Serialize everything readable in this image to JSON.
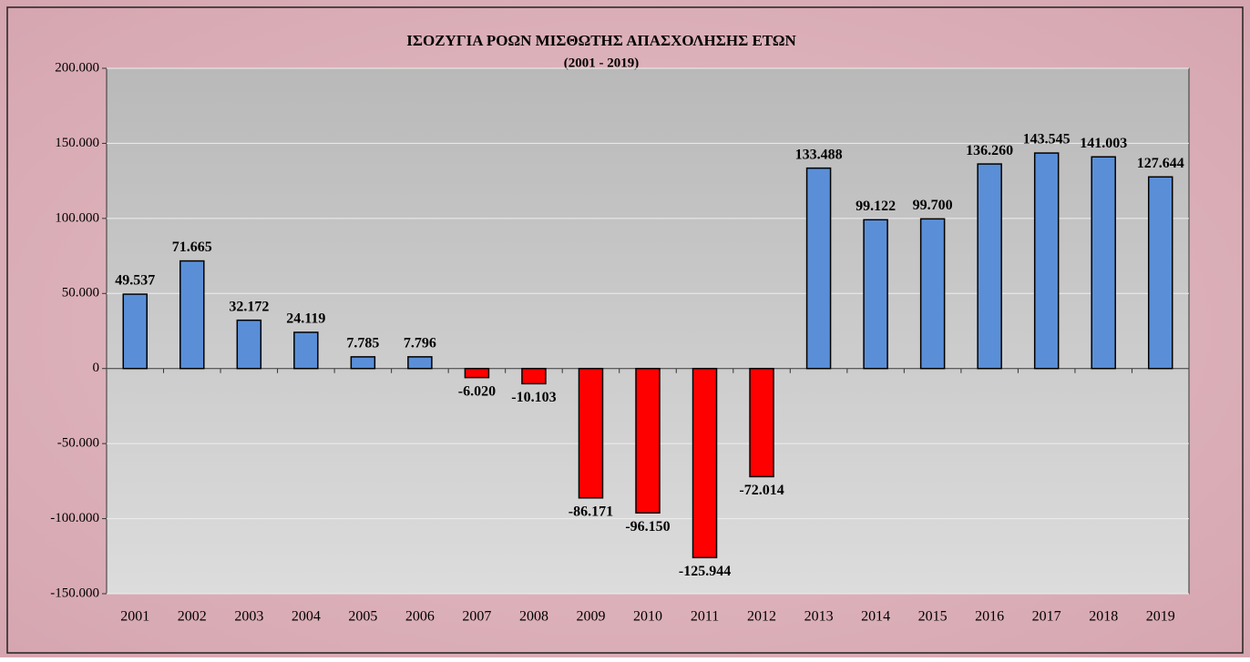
{
  "chart_data": {
    "type": "bar",
    "title": "ΙΣΟΖΥΓΙΑ ΡΟΩΝ ΜΙΣΘΩΤΗΣ ΑΠΑΣΧΟΛΗΣΗΣ ΕΤΩΝ",
    "subtitle": "(2001 - 2019)",
    "categories": [
      "2001",
      "2002",
      "2003",
      "2004",
      "2005",
      "2006",
      "2007",
      "2008",
      "2009",
      "2010",
      "2011",
      "2012",
      "2013",
      "2014",
      "2015",
      "2016",
      "2017",
      "2018",
      "2019"
    ],
    "values": [
      49537,
      71665,
      32172,
      24119,
      7785,
      7796,
      -6020,
      -10103,
      -86171,
      -96150,
      -125944,
      -72014,
      133488,
      99122,
      99700,
      136260,
      143545,
      141003,
      127644
    ],
    "value_labels": [
      "49.537",
      "71.665",
      "32.172",
      "24.119",
      "7.785",
      "7.796",
      "-6.020",
      "-10.103",
      "-86.171",
      "-96.150",
      "-125.944",
      "-72.014",
      "133.488",
      "99.122",
      "99.700",
      "136.260",
      "143.545",
      "141.003",
      "127.644"
    ],
    "color": "#5a8fd8",
    "negative_color": "#ff0000",
    "ylim": [
      -150000,
      200000
    ],
    "yticks": [
      {
        "value": -150000,
        "label": "-150.000"
      },
      {
        "value": -100000,
        "label": "-100.000"
      },
      {
        "value": -50000,
        "label": "-50.000"
      },
      0,
      {
        "value": 50000,
        "label": "50.000"
      },
      {
        "value": 100000,
        "label": "100.000"
      },
      {
        "value": 150000,
        "label": "150.000"
      },
      {
        "value": 200000,
        "label": "200.000"
      }
    ],
    "grid": true
  }
}
